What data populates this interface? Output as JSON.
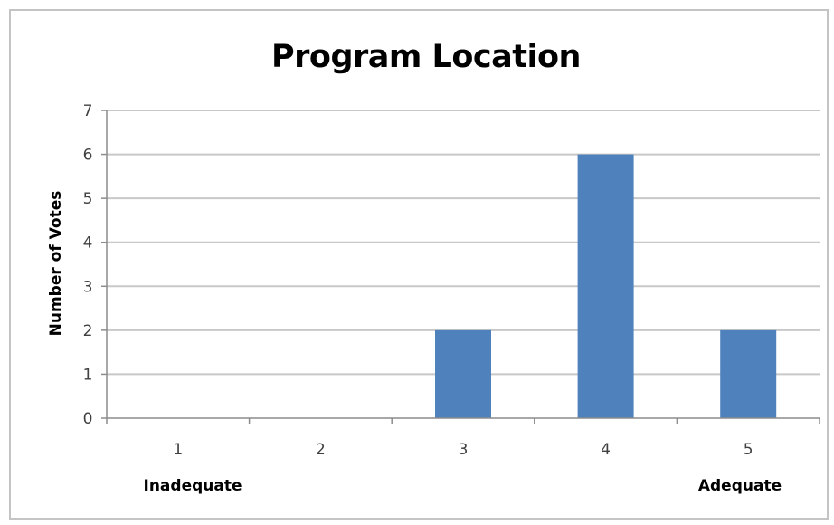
{
  "chart_data": {
    "type": "bar",
    "title": "Program Location",
    "xlabel": "",
    "ylabel": "Number of Votes",
    "categories": [
      "1",
      "2",
      "3",
      "4",
      "5"
    ],
    "values": [
      0,
      0,
      2,
      6,
      2
    ],
    "ylim": [
      0,
      7
    ],
    "yticks": [
      "0",
      "1",
      "2",
      "3",
      "4",
      "5",
      "6",
      "7"
    ],
    "grid": true,
    "bar_color": "#4f81bd",
    "category_notes": {
      "low": "Inadequate",
      "high": "Adequate"
    }
  }
}
